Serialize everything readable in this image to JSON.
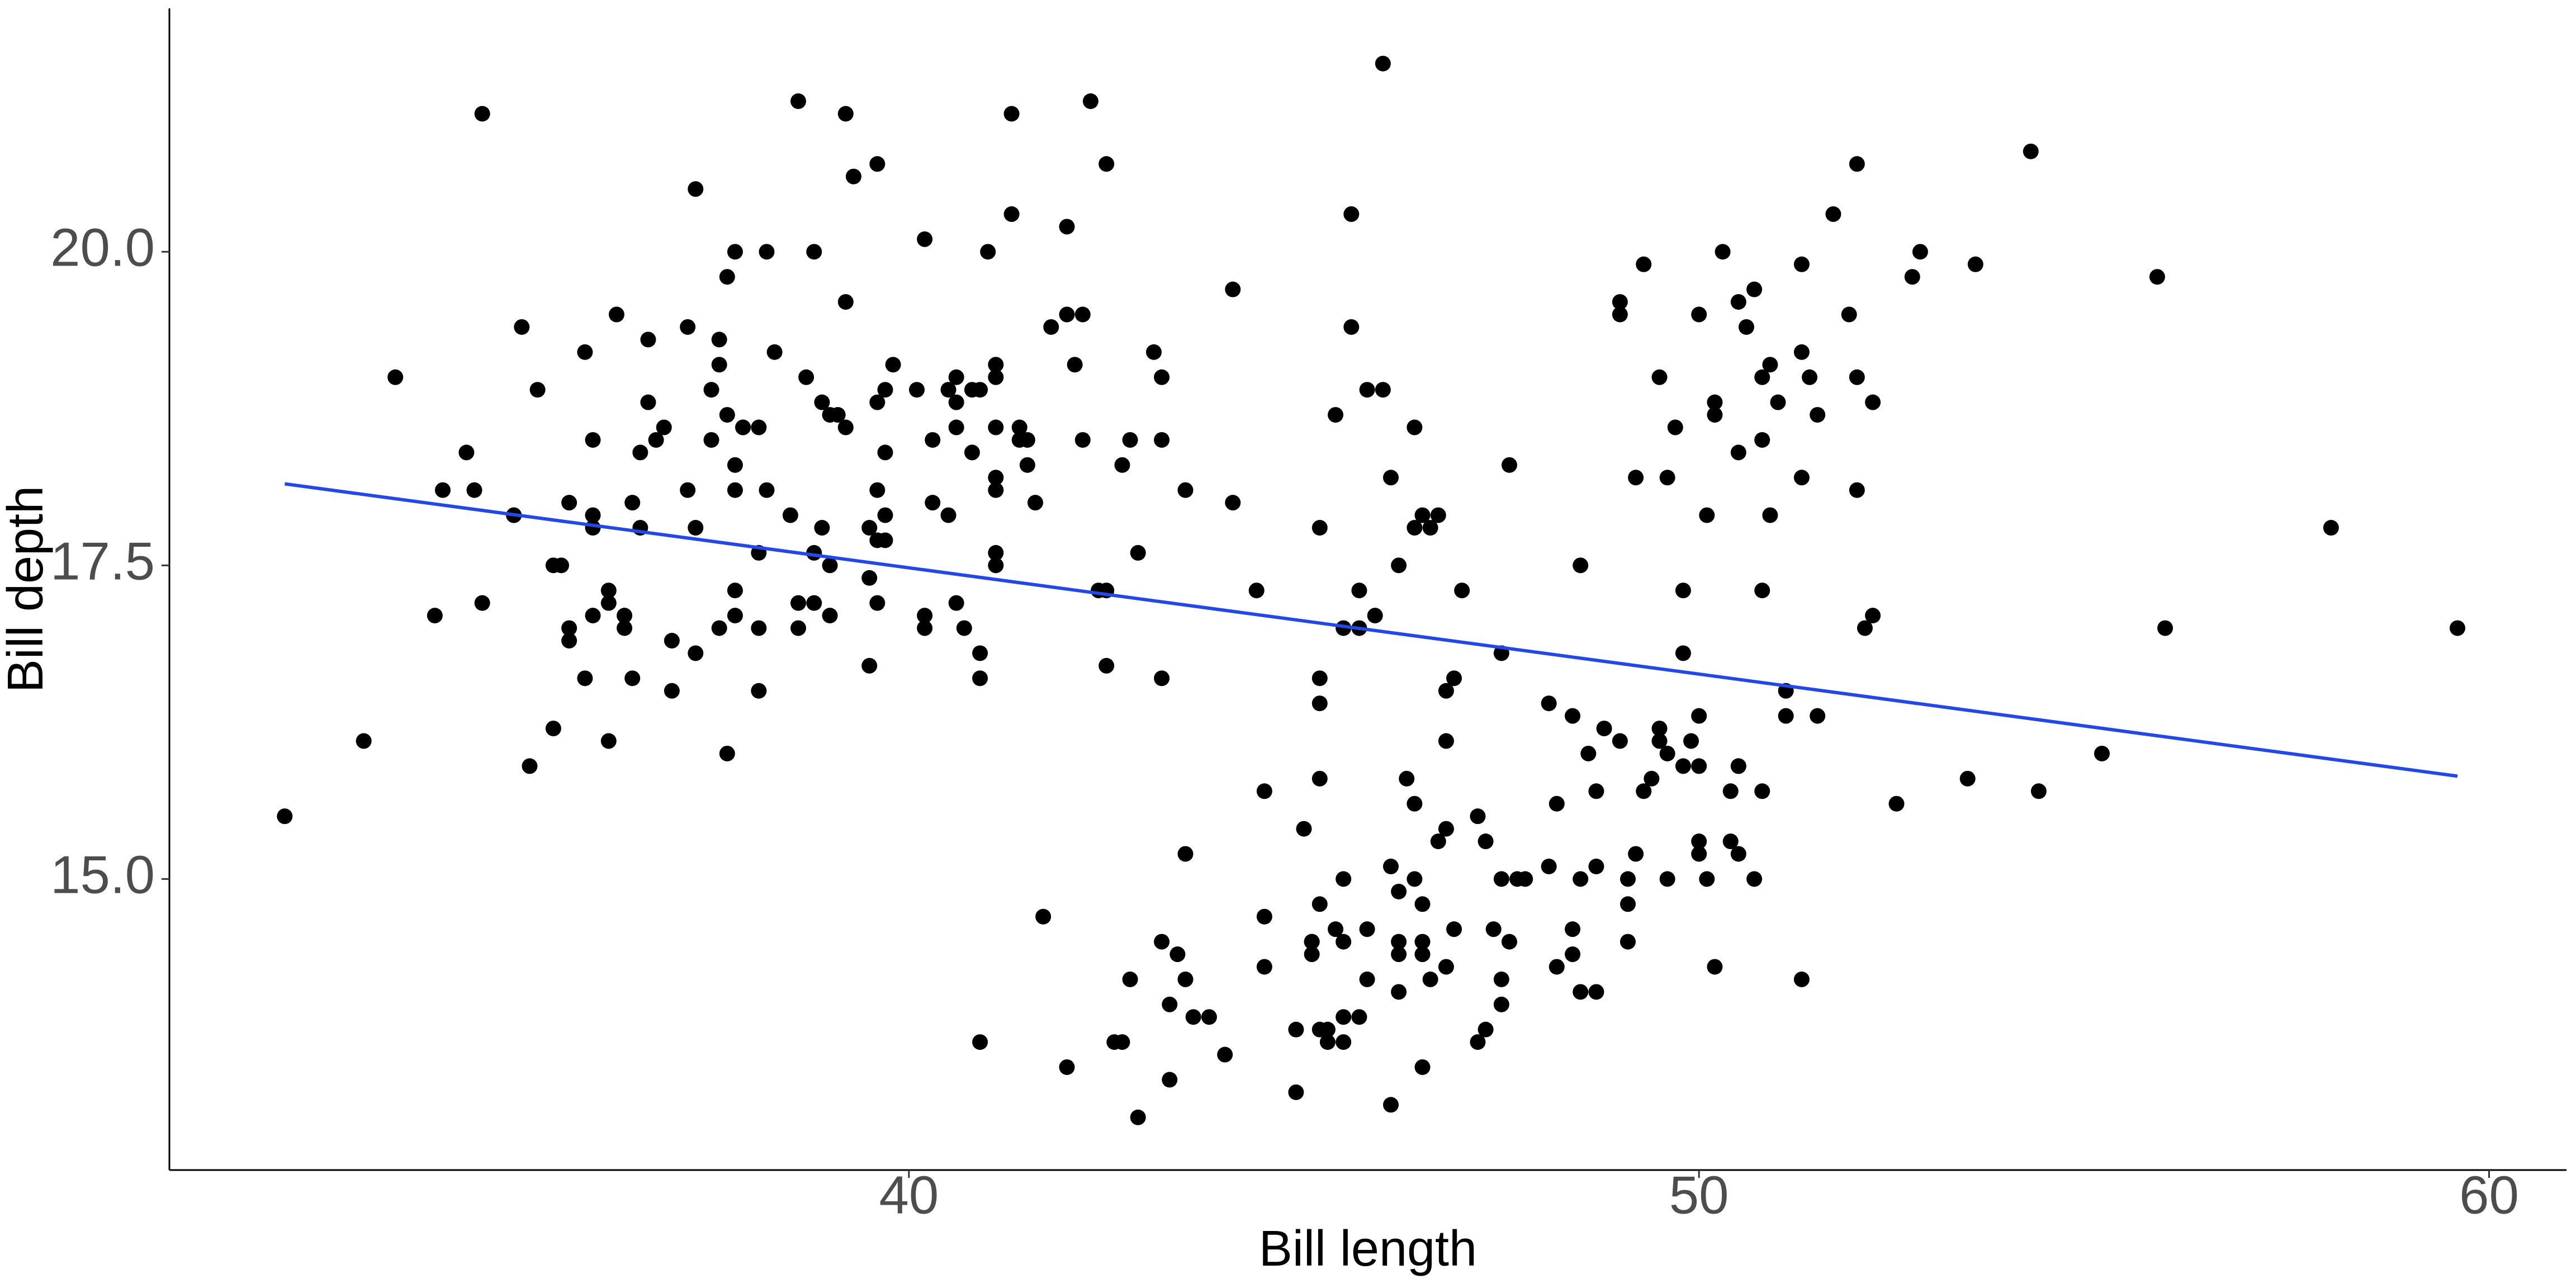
{
  "chart_data": {
    "type": "scatter",
    "x_label": "Bill length",
    "y_label": "Bill depth",
    "xlim": [
      30.64,
      60.98
    ],
    "ylim": [
      12.68,
      21.94
    ],
    "xticks": [
      40,
      50,
      60
    ],
    "yticks": [
      {
        "value": 15.0,
        "label": "15.0"
      },
      17.5,
      {
        "value": 20.0,
        "label": "20.0"
      }
    ],
    "grid": false,
    "series": [
      {
        "color": "#000000",
        "x": [
          39.1,
          39.5,
          40.3,
          36.7,
          39.3,
          38.9,
          39.2,
          34.1,
          42,
          37.8,
          37.8,
          41.1,
          38.6,
          34.6,
          36.6,
          38.7,
          42.5,
          34.4,
          46,
          37.8,
          37.7,
          35.9,
          38.2,
          38.8,
          35.3,
          40.6,
          40.5,
          37.9,
          40.5,
          39.5,
          37.2,
          39.5,
          40.9,
          36.4,
          39.2,
          38.8,
          42.2,
          37.6,
          39.8,
          36.5,
          40.8,
          36,
          44.1,
          37,
          39.6,
          41.1,
          37.5,
          36,
          42.3,
          39.6,
          40.1,
          35,
          42,
          34.5,
          41.4,
          39,
          40.6,
          36.5,
          37.6,
          35.7,
          41.3,
          37.6,
          41.1,
          36.4,
          41.6,
          35.5,
          41.1,
          35.9,
          41.8,
          33.5,
          39.7,
          39.6,
          45.8,
          35.5,
          42.8,
          40.9,
          37.2,
          36.2,
          42.1,
          34.6,
          42.9,
          36.7,
          35.1,
          37.3,
          41.3,
          36.3,
          36.9,
          38.3,
          38.9,
          35.7,
          41.1,
          34,
          39.6,
          36.2,
          40.8,
          38.1,
          40.3,
          33.1,
          43.2,
          35,
          41,
          37.7,
          37.8,
          37.9,
          39.7,
          38.6,
          38.2,
          38.1,
          43.2,
          38.1,
          45.6,
          39.7,
          42.2,
          39.6,
          42.7,
          38.6,
          37.3,
          35.7,
          41.1,
          36.2,
          37.7,
          40.2,
          41.4,
          35.2,
          40.6,
          38.8,
          41.5,
          39,
          44.1,
          38.5,
          43.1,
          36.8,
          37.5,
          38.1,
          41.1,
          35.6,
          40.2,
          37,
          39.7,
          40.2,
          40.6,
          32.1,
          40.7,
          37.3,
          39,
          39.2,
          36.6,
          36,
          37.8,
          36,
          41.5,
          46.1,
          50,
          48.7,
          50,
          47.6,
          46.5,
          45.4,
          46.7,
          43.3,
          46.8,
          40.9,
          49,
          45.5,
          48.4,
          45.8,
          49.3,
          42,
          49.2,
          46.2,
          48.7,
          50.2,
          45.1,
          46.5,
          46.3,
          42.9,
          46.1,
          44.5,
          47.8,
          48.2,
          50,
          47.3,
          42.8,
          45.1,
          59.6,
          49.1,
          48.4,
          42.6,
          44.4,
          44,
          48.7,
          42.7,
          49.6,
          45.3,
          49.6,
          50.5,
          43.6,
          45.5,
          50.5,
          44.9,
          45.2,
          46.6,
          48.5,
          45.1,
          50.1,
          46.5,
          45,
          43.8,
          45.5,
          43.2,
          50.4,
          45.3,
          46.2,
          45.7,
          54.3,
          45.8,
          49.8,
          46.2,
          49.5,
          43.5,
          50.7,
          47.7,
          46.4,
          48.2,
          46.5,
          46.4,
          48.6,
          47.5,
          51.1,
          45.2,
          45.2,
          49.1,
          52.5,
          47.4,
          50,
          44.9,
          50.8,
          43.4,
          51.3,
          47.5,
          52.1,
          47.5,
          52.2,
          45.5,
          49.5,
          44.5,
          50.8,
          49.4,
          46.9,
          48.4,
          51.1,
          48.5,
          55.9,
          47.2,
          49.1,
          47.3,
          46.8,
          41.7,
          53.4,
          43.3,
          48.1,
          50.5,
          49.8,
          43.5,
          51.5,
          46.2,
          55.1,
          44.5,
          48.8,
          47.2,
          46.8,
          50.4,
          45.2,
          49.9,
          46.5,
          50,
          51.3,
          45.4,
          52.7,
          45.2,
          46.1,
          51.3,
          46,
          51.3,
          46.6,
          51.7,
          47,
          52,
          45.9,
          50.5,
          50.3,
          58,
          46.4,
          49.2,
          42.4,
          48.5,
          43.2,
          50.6,
          46.7,
          52,
          50.5,
          49.5,
          46.4,
          52.8,
          40.9,
          54.2,
          42.5,
          51,
          49.7,
          47.5,
          47.6,
          52,
          46.9,
          53.5,
          49,
          46.2,
          50.9,
          45.5,
          50.9,
          50.8,
          50.1,
          49,
          51.5,
          49.8,
          48.1,
          51.4,
          45.7,
          50.7,
          42.5,
          52.2,
          45.2,
          49.3,
          50.2,
          45.6,
          51.9,
          46.8,
          45.7,
          55.8,
          43.5,
          49.6,
          50.8,
          50.2
        ],
        "values": [
          18.7,
          17.4,
          18,
          19.3,
          20.6,
          17.8,
          19.6,
          18.1,
          20.2,
          17.1,
          17.3,
          17.6,
          21.2,
          21.1,
          17.8,
          19,
          20.7,
          18.4,
          21.5,
          18.3,
          18.7,
          19.2,
          18.1,
          17.2,
          18.9,
          18.6,
          17.9,
          18.6,
          18.9,
          16.7,
          18.1,
          17.8,
          18.9,
          17,
          21.1,
          20,
          18.5,
          19.3,
          19.1,
          18,
          18.4,
          18.5,
          19.7,
          16.9,
          18.8,
          19,
          18.9,
          17.9,
          21.2,
          17.7,
          18.9,
          17.9,
          19.5,
          18.1,
          18.6,
          17.5,
          18.8,
          16.6,
          19.1,
          16.9,
          21.1,
          17,
          18.2,
          17.1,
          18,
          16.2,
          19.1,
          16.6,
          19.4,
          19,
          18.4,
          17.2,
          18.9,
          17.5,
          18.5,
          16.8,
          19.4,
          16.1,
          19.1,
          17.2,
          17.6,
          18.8,
          19.4,
          17.8,
          20.3,
          19.5,
          18.6,
          19.2,
          18.8,
          18,
          18.1,
          17.1,
          18.1,
          17.3,
          18.9,
          18.6,
          18.5,
          16.1,
          18.5,
          17.9,
          20,
          16,
          20,
          18.6,
          18.9,
          17.2,
          20,
          17,
          19,
          16.5,
          20.3,
          17.7,
          19.5,
          20.7,
          18.3,
          17,
          20.5,
          17,
          18.6,
          17.2,
          19.8,
          17,
          18.5,
          15.9,
          19,
          17.6,
          18.3,
          17.1,
          18,
          17.9,
          19.2,
          18.5,
          18.5,
          17.6,
          17.5,
          17.5,
          20.1,
          16.5,
          17.9,
          17.1,
          17.2,
          15.5,
          17,
          16.8,
          18.7,
          18.6,
          18.4,
          17.8,
          18.1,
          17.1,
          18.5,
          13.2,
          16.3,
          14.1,
          15.2,
          14.5,
          13.5,
          14.6,
          15.3,
          13.4,
          15.4,
          13.7,
          16.1,
          13.7,
          14.6,
          14.6,
          15.7,
          13.5,
          15.2,
          14.5,
          15.1,
          14.3,
          14.5,
          14.5,
          15.8,
          13.1,
          15.1,
          14.3,
          15,
          14.3,
          15.3,
          15.3,
          14.2,
          14.5,
          17,
          14.8,
          16.3,
          13.7,
          17.3,
          13.6,
          15.7,
          13.7,
          16,
          13.7,
          15,
          15.9,
          13.9,
          13.9,
          15.9,
          13.3,
          15.8,
          14.2,
          14.1,
          14.4,
          15,
          14.4,
          15.4,
          13.9,
          15,
          14.5,
          15.3,
          13.8,
          14.9,
          13.9,
          15.7,
          14.2,
          16.8,
          14.4,
          16.2,
          14.2,
          15,
          15,
          15.6,
          15.6,
          14.8,
          15,
          16,
          14.2,
          16.3,
          13.8,
          16.4,
          14.5,
          15.6,
          14.6,
          15.9,
          13.8,
          17.3,
          14.4,
          14.2,
          14,
          17,
          15,
          17.1,
          14.5,
          16.1,
          14.7,
          15.7,
          15.8,
          14.6,
          14.4,
          16.5,
          15,
          17,
          15.5,
          15,
          13.8,
          16.1,
          14.7,
          15.8,
          14,
          15.1,
          15.2,
          15.9,
          15.2,
          16.3,
          14.1,
          16,
          15.7,
          16.2,
          13.7,
          14.3,
          15.7,
          14.8,
          16.1,
          17.9,
          19.5,
          19.2,
          18.7,
          19.8,
          17.8,
          18.2,
          18.2,
          18.9,
          19.9,
          17.8,
          20.3,
          17.3,
          18.1,
          17.1,
          19.6,
          20,
          17.8,
          18.6,
          18.2,
          17.3,
          17.5,
          16.6,
          19.4,
          17.9,
          19,
          18.4,
          19,
          17.8,
          20,
          16.6,
          20.8,
          16.7,
          18.8,
          18.6,
          16.8,
          18.3,
          20.7,
          16.6,
          19.9,
          19.5,
          17.5,
          19.1,
          17,
          17.9,
          18.5,
          17.9,
          19.6,
          18.7,
          17.3,
          16.4,
          19,
          17.3,
          19.7,
          17.3,
          18.8,
          16.6,
          19.9,
          18.8,
          19.4,
          19.5,
          16.5,
          17,
          19.8,
          18.1,
          18.2,
          19,
          18.7
        ]
      }
    ],
    "trend_line": {
      "color": "#2348e6",
      "x": [
        32.1,
        59.6
      ],
      "y": [
        18.15,
        15.82
      ]
    }
  }
}
